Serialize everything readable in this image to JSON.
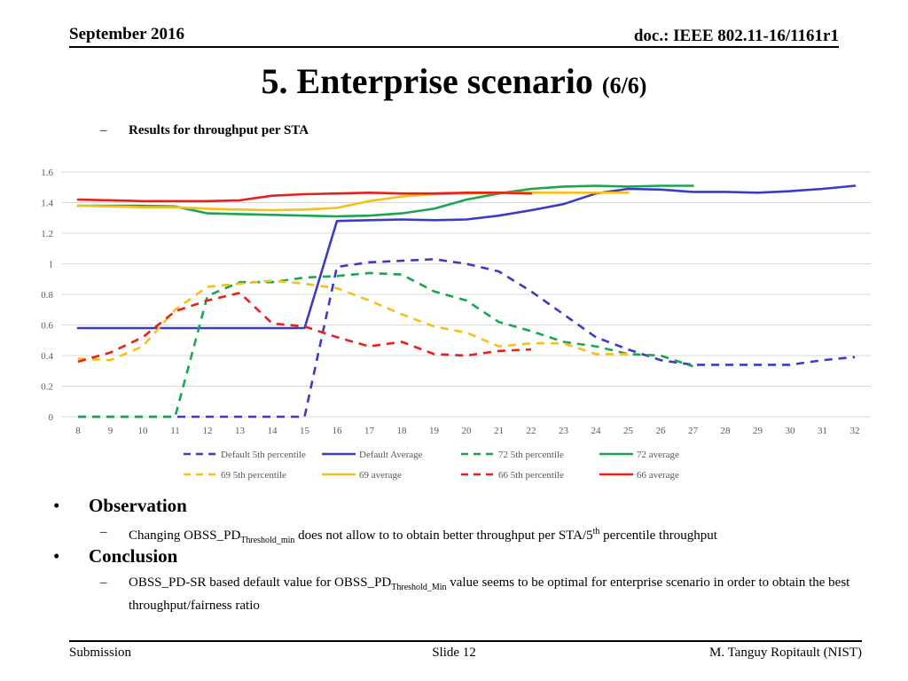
{
  "header": {
    "date": "September 2016",
    "doc": "doc.: IEEE 802.11-16/1161r1"
  },
  "title": {
    "main": "5. Enterprise scenario",
    "sub": "(6/6)"
  },
  "results_label": "Results for throughput per STA",
  "dash_glyph": "–",
  "bullet_glyph": "•",
  "chart_data": {
    "type": "line",
    "title": "",
    "xlabel": "",
    "ylabel": "",
    "x": [
      8,
      9,
      10,
      11,
      12,
      13,
      14,
      15,
      16,
      17,
      18,
      19,
      20,
      21,
      22,
      23,
      24,
      25,
      26,
      27,
      28,
      29,
      30,
      31,
      32
    ],
    "xlim": [
      8,
      32
    ],
    "ylim": [
      0,
      1.6
    ],
    "yticks": [
      "0",
      "0.2",
      "0.4",
      "0.6",
      "0.8",
      "1",
      "1.2",
      "1.4",
      "1.6"
    ],
    "ytick_values": [
      0,
      0.2,
      0.4,
      0.6,
      0.8,
      1,
      1.2,
      1.4,
      1.6
    ],
    "grid": true,
    "legend_position": "bottom",
    "series": [
      {
        "name": "Default 5th percentile",
        "color": "#3b3bc4",
        "dashed": true,
        "x": [
          8,
          9,
          10,
          11,
          12,
          13,
          14,
          15,
          16,
          17,
          18,
          19,
          20,
          21,
          22,
          23,
          24,
          25,
          26,
          27,
          28,
          29,
          30,
          31,
          32
        ],
        "values": [
          0,
          0,
          0,
          0,
          0,
          0,
          0,
          0,
          0.98,
          1.01,
          1.02,
          1.03,
          1.0,
          0.95,
          0.82,
          0.67,
          0.52,
          0.44,
          0.37,
          0.34,
          0.34,
          0.34,
          0.34,
          0.37,
          0.39
        ]
      },
      {
        "name": "Default Average",
        "color": "#3b3bc4",
        "dashed": false,
        "x": [
          8,
          9,
          10,
          11,
          12,
          13,
          14,
          15,
          16,
          17,
          18,
          19,
          20,
          21,
          22,
          23,
          24,
          25,
          26,
          27,
          28,
          29,
          30,
          31,
          32
        ],
        "values": [
          0.58,
          0.58,
          0.58,
          0.58,
          0.58,
          0.58,
          0.58,
          0.58,
          1.28,
          1.285,
          1.29,
          1.285,
          1.29,
          1.315,
          1.35,
          1.39,
          1.46,
          1.49,
          1.485,
          1.47,
          1.47,
          1.465,
          1.475,
          1.49,
          1.51
        ]
      },
      {
        "name": "72 5th percentile",
        "color": "#1aa650",
        "dashed": true,
        "x": [
          8,
          9,
          10,
          11,
          12,
          13,
          14,
          15,
          16,
          17,
          18,
          19,
          20,
          21,
          22,
          23,
          24,
          25,
          26,
          27
        ],
        "values": [
          0,
          0,
          0,
          0,
          0.79,
          0.88,
          0.88,
          0.91,
          0.92,
          0.94,
          0.93,
          0.82,
          0.76,
          0.62,
          0.56,
          0.49,
          0.46,
          0.41,
          0.4,
          0.33
        ]
      },
      {
        "name": "72 average",
        "color": "#1aa650",
        "dashed": false,
        "x": [
          8,
          9,
          10,
          11,
          12,
          13,
          14,
          15,
          16,
          17,
          18,
          19,
          20,
          21,
          22,
          23,
          24,
          25,
          26,
          27
        ],
        "values": [
          1.38,
          1.38,
          1.38,
          1.375,
          1.33,
          1.325,
          1.32,
          1.315,
          1.31,
          1.315,
          1.33,
          1.36,
          1.42,
          1.46,
          1.49,
          1.505,
          1.51,
          1.505,
          1.51,
          1.51
        ]
      },
      {
        "name": "69 5th percentile",
        "color": "#f5c018",
        "dashed": true,
        "x": [
          8,
          9,
          10,
          11,
          12,
          13,
          14,
          15,
          16,
          17,
          18,
          19,
          20,
          21,
          22,
          23,
          24,
          25
        ],
        "values": [
          0.38,
          0.37,
          0.46,
          0.7,
          0.85,
          0.87,
          0.89,
          0.87,
          0.84,
          0.76,
          0.67,
          0.59,
          0.55,
          0.46,
          0.48,
          0.48,
          0.41,
          0.41
        ]
      },
      {
        "name": "69 average",
        "color": "#f5c018",
        "dashed": false,
        "x": [
          8,
          9,
          10,
          11,
          12,
          13,
          14,
          15,
          16,
          17,
          18,
          19,
          20,
          21,
          22,
          23,
          24,
          25
        ],
        "values": [
          1.38,
          1.375,
          1.37,
          1.37,
          1.36,
          1.355,
          1.35,
          1.355,
          1.365,
          1.41,
          1.44,
          1.455,
          1.46,
          1.465,
          1.465,
          1.465,
          1.465,
          1.465
        ]
      },
      {
        "name": "66 5th percentile",
        "color": "#e8201c",
        "dashed": true,
        "x": [
          8,
          9,
          10,
          11,
          12,
          13,
          14,
          15,
          16,
          17,
          18,
          19,
          20,
          21,
          22
        ],
        "values": [
          0.36,
          0.42,
          0.52,
          0.69,
          0.76,
          0.81,
          0.61,
          0.59,
          0.52,
          0.46,
          0.49,
          0.41,
          0.4,
          0.43,
          0.44
        ]
      },
      {
        "name": "66 average",
        "color": "#e8201c",
        "dashed": false,
        "x": [
          8,
          9,
          10,
          11,
          12,
          13,
          14,
          15,
          16,
          17,
          18,
          19,
          20,
          21,
          22
        ],
        "values": [
          1.42,
          1.415,
          1.41,
          1.41,
          1.41,
          1.415,
          1.445,
          1.455,
          1.46,
          1.465,
          1.46,
          1.46,
          1.465,
          1.465,
          1.46
        ]
      }
    ]
  },
  "observation": {
    "heading": "Observation",
    "line_pre": "Changing OBSS_PD",
    "line_sub": "Threshold_min",
    "line_mid": " does not allow to to obtain better throughput per STA/5",
    "line_sup": "th",
    "line_post": " percentile throughput"
  },
  "conclusion": {
    "heading": "Conclusion",
    "line_pre": "OBSS_PD-SR based default value for OBSS_PD",
    "line_sub": "Threshold_Min",
    "line_post": " value seems to be optimal for enterprise scenario in order to obtain the best throughput/fairness ratio"
  },
  "footer": {
    "left": "Submission",
    "center": "Slide 12",
    "right": "M. Tanguy Ropitault (NIST)"
  }
}
